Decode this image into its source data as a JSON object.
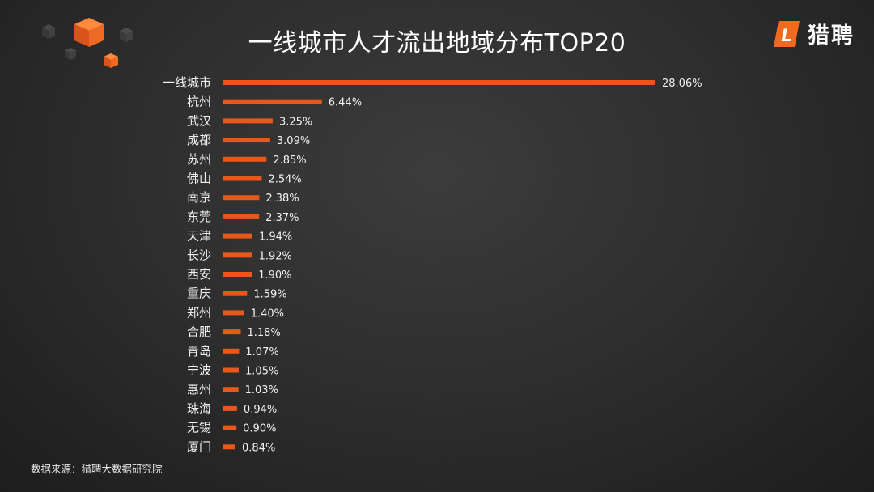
{
  "title": "一线城市人才流出地域分布TOP20",
  "logo": {
    "text": "猎聘",
    "mark": "L"
  },
  "source": "数据来源：猎聘大数据研究院",
  "colors": {
    "bar": "#e8581b",
    "accent": "#f26a1f",
    "text": "#f2f2f2"
  },
  "chart_data": {
    "type": "bar",
    "orientation": "horizontal",
    "title": "一线城市人才流出地域分布TOP20",
    "categories": [
      "一线城市",
      "杭州",
      "武汉",
      "成都",
      "苏州",
      "佛山",
      "南京",
      "东莞",
      "天津",
      "长沙",
      "西安",
      "重庆",
      "郑州",
      "合肥",
      "青岛",
      "宁波",
      "惠州",
      "珠海",
      "无锡",
      "厦门"
    ],
    "values": [
      28.06,
      6.44,
      3.25,
      3.09,
      2.85,
      2.54,
      2.38,
      2.37,
      1.94,
      1.92,
      1.9,
      1.59,
      1.4,
      1.18,
      1.07,
      1.05,
      1.03,
      0.94,
      0.9,
      0.84
    ],
    "labels": [
      "28.06%",
      "6.44%",
      "3.25%",
      "3.09%",
      "2.85%",
      "2.54%",
      "2.38%",
      "2.37%",
      "1.94%",
      "1.92%",
      "1.90%",
      "1.59%",
      "1.40%",
      "1.18%",
      "1.07%",
      "1.05%",
      "1.03%",
      "0.94%",
      "0.90%",
      "0.84%"
    ],
    "unit": "%",
    "xlim": [
      0,
      28.06
    ],
    "grid": false,
    "legend": "none"
  }
}
